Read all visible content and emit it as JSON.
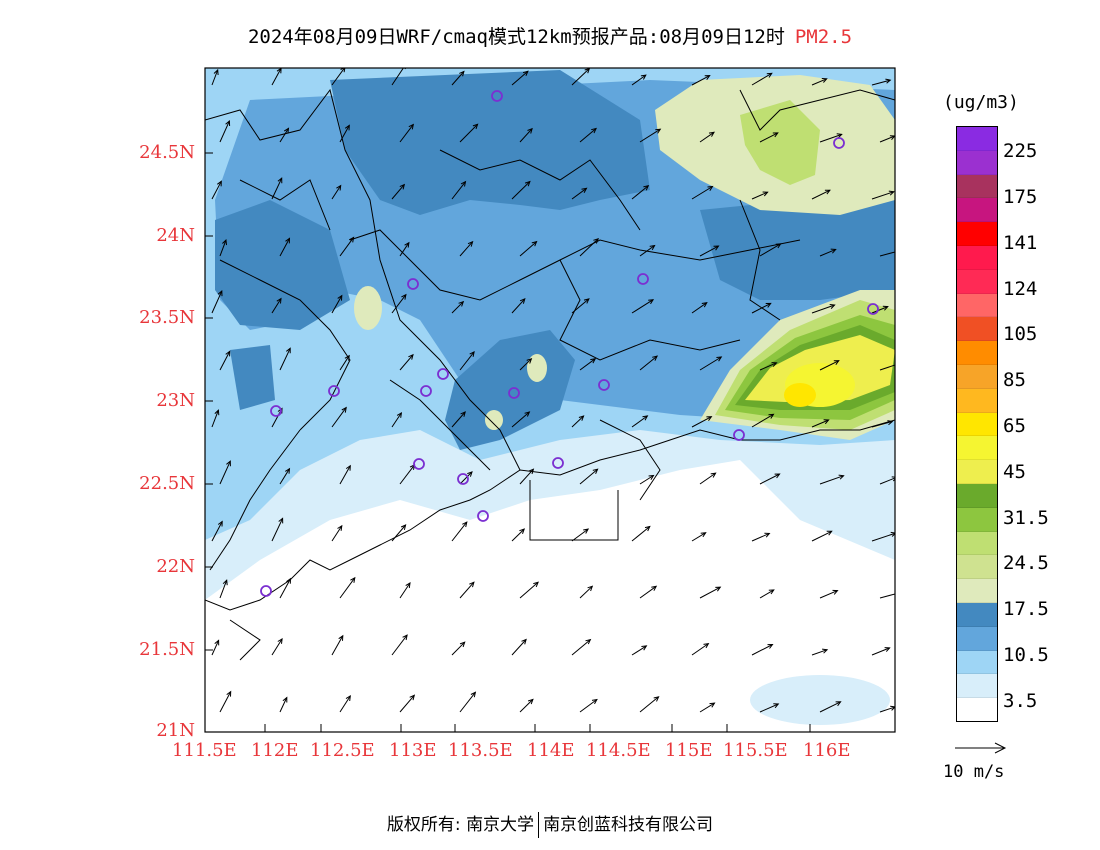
{
  "title": {
    "main": "2024年08月09日WRF/cmaq模式12km预报产品:08月09日12时",
    "species": "PM2.5"
  },
  "map": {
    "lon_ticks": [
      "111.5E",
      "112E",
      "112.5E",
      "113E",
      "113.5E",
      "114E",
      "114.5E",
      "115E",
      "115.5E",
      "116E"
    ],
    "lat_ticks": [
      "24.5N",
      "24N",
      "23.5N",
      "23N",
      "22.5N",
      "22N",
      "21.5N",
      "21N"
    ],
    "lon_range": [
      111.5,
      116.7
    ],
    "lat_range": [
      21.0,
      25.0
    ],
    "wind_arrow_color": "#000000",
    "station_marker_color": "#7b2fd1"
  },
  "legend": {
    "unit": "(ug/m3)",
    "labels": [
      "225",
      "175",
      "141",
      "124",
      "105",
      "85",
      "65",
      "45",
      "31.5",
      "24.5",
      "17.5",
      "10.5",
      "3.5"
    ],
    "colors_top_to_bottom": [
      "#8a2be2",
      "#9b30d0",
      "#a8325e",
      "#c7157f",
      "#ff0000",
      "#ff1a4d",
      "#ff2a55",
      "#ff6666",
      "#f05024",
      "#ff8c00",
      "#f7a428",
      "#ffb81f",
      "#ffe600",
      "#f5f531",
      "#eeee4e",
      "#6aaa2c",
      "#8dc63f",
      "#bfdf72",
      "#cfe290",
      "#dfeabc",
      "#4389c0",
      "#62a6dc",
      "#9ed5f5",
      "#d8eefa",
      "#ffffff"
    ]
  },
  "wind_reference": {
    "label": "10 m/s"
  },
  "copyright": {
    "prefix": "版权所有:",
    "org1": "南京大学",
    "org2": "南京创蓝科技有限公司"
  }
}
